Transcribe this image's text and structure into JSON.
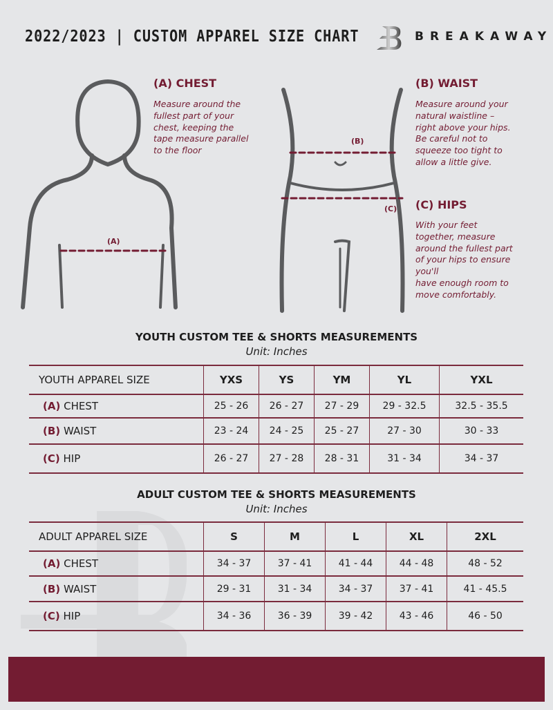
{
  "header": {
    "title": "2022/2023  |  CUSTOM APPAREL SIZE CHART",
    "brand": "BREAKAWAY",
    "brand_logo": "B-monogram"
  },
  "chest": {
    "heading": "(A) CHEST",
    "text": [
      "Measure around the",
      "fullest part of your",
      "chest, keeping the",
      "tape measure parallel",
      "to the floor"
    ],
    "marker": "(A)"
  },
  "waist": {
    "heading": "(B) WAIST",
    "text": [
      "Measure around your",
      "natural waistline –",
      "right above your hips.",
      "Be careful not to",
      "squeeze too tight to",
      "allow a little give."
    ],
    "marker": "(B)"
  },
  "hips": {
    "heading": "(C) HIPS",
    "text": [
      "With your feet",
      "together, measure",
      "around the fullest part",
      "of your hips to ensure",
      "you'll",
      "have enough room to",
      "move comfortably."
    ],
    "marker": "(C)"
  },
  "youth": {
    "title": "YOUTH CUSTOM TEE & SHORTS MEASUREMENTS",
    "unit": "Unit: Inches",
    "size_label": "YOUTH APPAREL SIZE",
    "sizes": [
      "YXS",
      "YS",
      "YM",
      "YL",
      "YXL"
    ],
    "rows": [
      {
        "code": "(A)",
        "name": "CHEST",
        "values": [
          "25 - 26",
          "26 - 27",
          "27 - 29",
          "29 - 32.5",
          "32.5 - 35.5"
        ]
      },
      {
        "code": "(B)",
        "name": "WAIST",
        "values": [
          "23 - 24",
          "24 - 25",
          "25 - 27",
          "27 - 30",
          "30 - 33"
        ]
      },
      {
        "code": "(C)",
        "name": "HIP",
        "values": [
          "26 - 27",
          "27 - 28",
          "28 - 31",
          "31 - 34",
          "34 - 37"
        ]
      }
    ]
  },
  "adult": {
    "title": "ADULT CUSTOM TEE & SHORTS MEASUREMENTS",
    "unit": "Unit: Inches",
    "size_label": "ADULT APPAREL SIZE",
    "sizes": [
      "S",
      "M",
      "L",
      "XL",
      "2XL"
    ],
    "rows": [
      {
        "code": "(A)",
        "name": "CHEST",
        "values": [
          "34 - 37",
          "37 - 41",
          "41 - 44",
          "44 - 48",
          "48 - 52"
        ]
      },
      {
        "code": "(B)",
        "name": "WAIST",
        "values": [
          "29 - 31",
          "31 - 34",
          "34 - 37",
          "37 - 41",
          "41 - 45.5"
        ]
      },
      {
        "code": "(C)",
        "name": "HIP",
        "values": [
          "34 - 36",
          "36 - 39",
          "39 - 42",
          "43 - 46",
          "46 - 50"
        ]
      }
    ]
  },
  "colors": {
    "accent": "#731c32",
    "background": "#e5e6e8"
  }
}
